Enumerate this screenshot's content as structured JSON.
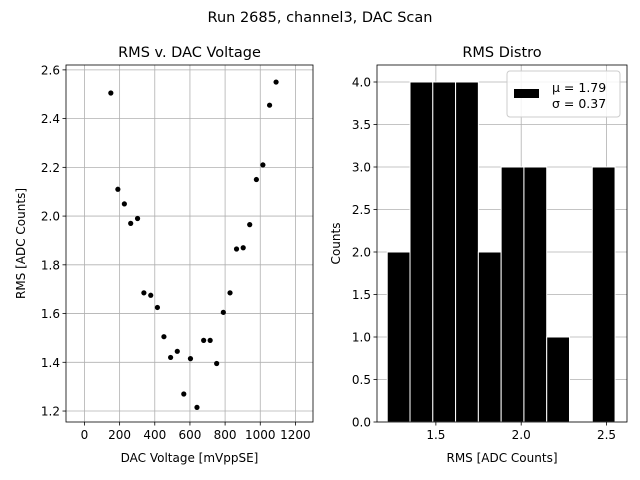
{
  "figure": {
    "suptitle": "Run 2685, channel3, DAC Scan"
  },
  "chart_data": [
    {
      "type": "scatter",
      "title": "RMS v. DAC Voltage",
      "xlabel": "DAC Voltage [mVppSE]",
      "ylabel": "RMS [ADC Counts]",
      "xlim": [
        -105,
        1300
      ],
      "ylim": [
        1.155,
        2.62
      ],
      "xticks": [
        0,
        200,
        400,
        600,
        800,
        1000,
        1200
      ],
      "xtick_labels": [
        "0",
        "200",
        "400",
        "600",
        "800",
        "1000",
        "1200"
      ],
      "yticks": [
        1.2,
        1.4,
        1.6,
        1.8,
        2.0,
        2.2,
        2.4,
        2.6
      ],
      "ytick_labels": [
        "1.2",
        "1.4",
        "1.6",
        "1.8",
        "2.0",
        "2.2",
        "2.4",
        "2.6"
      ],
      "grid": true,
      "marker_color": "#000000",
      "points": [
        {
          "x": 150,
          "y": 2.505
        },
        {
          "x": 190,
          "y": 2.11
        },
        {
          "x": 227,
          "y": 2.05
        },
        {
          "x": 263,
          "y": 1.97
        },
        {
          "x": 302,
          "y": 1.99
        },
        {
          "x": 338,
          "y": 1.685
        },
        {
          "x": 377,
          "y": 1.675
        },
        {
          "x": 415,
          "y": 1.625
        },
        {
          "x": 452,
          "y": 1.505
        },
        {
          "x": 490,
          "y": 1.42
        },
        {
          "x": 528,
          "y": 1.445
        },
        {
          "x": 565,
          "y": 1.27
        },
        {
          "x": 603,
          "y": 1.415
        },
        {
          "x": 640,
          "y": 1.215
        },
        {
          "x": 678,
          "y": 1.49
        },
        {
          "x": 715,
          "y": 1.49
        },
        {
          "x": 752,
          "y": 1.395
        },
        {
          "x": 790,
          "y": 1.605
        },
        {
          "x": 828,
          "y": 1.685
        },
        {
          "x": 865,
          "y": 1.865
        },
        {
          "x": 903,
          "y": 1.87
        },
        {
          "x": 940,
          "y": 1.965
        },
        {
          "x": 978,
          "y": 2.15
        },
        {
          "x": 1015,
          "y": 2.21
        },
        {
          "x": 1053,
          "y": 2.455
        },
        {
          "x": 1090,
          "y": 2.55
        }
      ]
    },
    {
      "type": "bar",
      "subtype": "histogram",
      "title": "RMS Distro",
      "xlabel": "RMS [ADC Counts]",
      "ylabel": "Counts",
      "xlim": [
        1.155,
        2.62
      ],
      "ylim": [
        0,
        4.2
      ],
      "xticks": [
        1.5,
        2.0,
        2.5
      ],
      "xtick_labels": [
        "1.5",
        "2.0",
        "2.5"
      ],
      "yticks": [
        0,
        0.5,
        1.0,
        1.5,
        2.0,
        2.5,
        3.0,
        3.5,
        4.0
      ],
      "ytick_labels": [
        "0.0",
        "0.5",
        "1.0",
        "1.5",
        "2.0",
        "2.5",
        "3.0",
        "3.5",
        "4.0"
      ],
      "grid": true,
      "bar_color": "#000000",
      "bar_edge_color": "#ffffff",
      "bin_edges": [
        1.215,
        1.3485,
        1.482,
        1.6155,
        1.749,
        1.8825,
        2.016,
        2.1495,
        2.283,
        2.4165,
        2.55
      ],
      "values": [
        2,
        4,
        4,
        4,
        2,
        3,
        3,
        1,
        0,
        3
      ],
      "legend": {
        "position": "upper right",
        "label_mu": "μ = 1.79",
        "label_sigma": "σ = 0.37"
      }
    }
  ]
}
